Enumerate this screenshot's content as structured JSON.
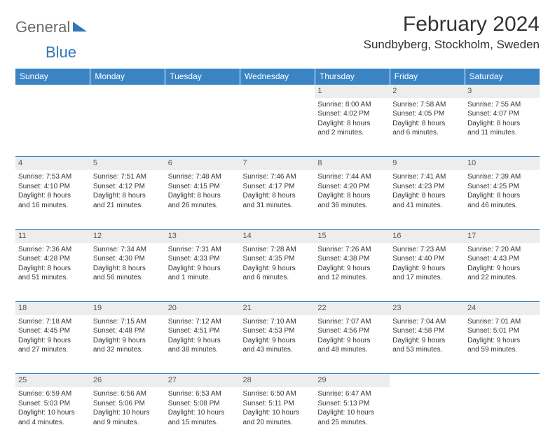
{
  "logo": {
    "text1": "General",
    "text2": "Blue",
    "shape_color": "#2f77b5"
  },
  "title": "February 2024",
  "location": "Sundbyberg, Stockholm, Sweden",
  "colors": {
    "header_bg": "#3a84c4",
    "header_text": "#ffffff",
    "daynum_bg": "#ededed",
    "border": "#3a84c4",
    "body_text": "#333333"
  },
  "day_headers": [
    "Sunday",
    "Monday",
    "Tuesday",
    "Wednesday",
    "Thursday",
    "Friday",
    "Saturday"
  ],
  "weeks": [
    [
      null,
      null,
      null,
      null,
      {
        "n": "1",
        "sr": "Sunrise: 8:00 AM",
        "ss": "Sunset: 4:02 PM",
        "d1": "Daylight: 8 hours",
        "d2": "and 2 minutes."
      },
      {
        "n": "2",
        "sr": "Sunrise: 7:58 AM",
        "ss": "Sunset: 4:05 PM",
        "d1": "Daylight: 8 hours",
        "d2": "and 6 minutes."
      },
      {
        "n": "3",
        "sr": "Sunrise: 7:55 AM",
        "ss": "Sunset: 4:07 PM",
        "d1": "Daylight: 8 hours",
        "d2": "and 11 minutes."
      }
    ],
    [
      {
        "n": "4",
        "sr": "Sunrise: 7:53 AM",
        "ss": "Sunset: 4:10 PM",
        "d1": "Daylight: 8 hours",
        "d2": "and 16 minutes."
      },
      {
        "n": "5",
        "sr": "Sunrise: 7:51 AM",
        "ss": "Sunset: 4:12 PM",
        "d1": "Daylight: 8 hours",
        "d2": "and 21 minutes."
      },
      {
        "n": "6",
        "sr": "Sunrise: 7:48 AM",
        "ss": "Sunset: 4:15 PM",
        "d1": "Daylight: 8 hours",
        "d2": "and 26 minutes."
      },
      {
        "n": "7",
        "sr": "Sunrise: 7:46 AM",
        "ss": "Sunset: 4:17 PM",
        "d1": "Daylight: 8 hours",
        "d2": "and 31 minutes."
      },
      {
        "n": "8",
        "sr": "Sunrise: 7:44 AM",
        "ss": "Sunset: 4:20 PM",
        "d1": "Daylight: 8 hours",
        "d2": "and 36 minutes."
      },
      {
        "n": "9",
        "sr": "Sunrise: 7:41 AM",
        "ss": "Sunset: 4:23 PM",
        "d1": "Daylight: 8 hours",
        "d2": "and 41 minutes."
      },
      {
        "n": "10",
        "sr": "Sunrise: 7:39 AM",
        "ss": "Sunset: 4:25 PM",
        "d1": "Daylight: 8 hours",
        "d2": "and 46 minutes."
      }
    ],
    [
      {
        "n": "11",
        "sr": "Sunrise: 7:36 AM",
        "ss": "Sunset: 4:28 PM",
        "d1": "Daylight: 8 hours",
        "d2": "and 51 minutes."
      },
      {
        "n": "12",
        "sr": "Sunrise: 7:34 AM",
        "ss": "Sunset: 4:30 PM",
        "d1": "Daylight: 8 hours",
        "d2": "and 56 minutes."
      },
      {
        "n": "13",
        "sr": "Sunrise: 7:31 AM",
        "ss": "Sunset: 4:33 PM",
        "d1": "Daylight: 9 hours",
        "d2": "and 1 minute."
      },
      {
        "n": "14",
        "sr": "Sunrise: 7:28 AM",
        "ss": "Sunset: 4:35 PM",
        "d1": "Daylight: 9 hours",
        "d2": "and 6 minutes."
      },
      {
        "n": "15",
        "sr": "Sunrise: 7:26 AM",
        "ss": "Sunset: 4:38 PM",
        "d1": "Daylight: 9 hours",
        "d2": "and 12 minutes."
      },
      {
        "n": "16",
        "sr": "Sunrise: 7:23 AM",
        "ss": "Sunset: 4:40 PM",
        "d1": "Daylight: 9 hours",
        "d2": "and 17 minutes."
      },
      {
        "n": "17",
        "sr": "Sunrise: 7:20 AM",
        "ss": "Sunset: 4:43 PM",
        "d1": "Daylight: 9 hours",
        "d2": "and 22 minutes."
      }
    ],
    [
      {
        "n": "18",
        "sr": "Sunrise: 7:18 AM",
        "ss": "Sunset: 4:45 PM",
        "d1": "Daylight: 9 hours",
        "d2": "and 27 minutes."
      },
      {
        "n": "19",
        "sr": "Sunrise: 7:15 AM",
        "ss": "Sunset: 4:48 PM",
        "d1": "Daylight: 9 hours",
        "d2": "and 32 minutes."
      },
      {
        "n": "20",
        "sr": "Sunrise: 7:12 AM",
        "ss": "Sunset: 4:51 PM",
        "d1": "Daylight: 9 hours",
        "d2": "and 38 minutes."
      },
      {
        "n": "21",
        "sr": "Sunrise: 7:10 AM",
        "ss": "Sunset: 4:53 PM",
        "d1": "Daylight: 9 hours",
        "d2": "and 43 minutes."
      },
      {
        "n": "22",
        "sr": "Sunrise: 7:07 AM",
        "ss": "Sunset: 4:56 PM",
        "d1": "Daylight: 9 hours",
        "d2": "and 48 minutes."
      },
      {
        "n": "23",
        "sr": "Sunrise: 7:04 AM",
        "ss": "Sunset: 4:58 PM",
        "d1": "Daylight: 9 hours",
        "d2": "and 53 minutes."
      },
      {
        "n": "24",
        "sr": "Sunrise: 7:01 AM",
        "ss": "Sunset: 5:01 PM",
        "d1": "Daylight: 9 hours",
        "d2": "and 59 minutes."
      }
    ],
    [
      {
        "n": "25",
        "sr": "Sunrise: 6:59 AM",
        "ss": "Sunset: 5:03 PM",
        "d1": "Daylight: 10 hours",
        "d2": "and 4 minutes."
      },
      {
        "n": "26",
        "sr": "Sunrise: 6:56 AM",
        "ss": "Sunset: 5:06 PM",
        "d1": "Daylight: 10 hours",
        "d2": "and 9 minutes."
      },
      {
        "n": "27",
        "sr": "Sunrise: 6:53 AM",
        "ss": "Sunset: 5:08 PM",
        "d1": "Daylight: 10 hours",
        "d2": "and 15 minutes."
      },
      {
        "n": "28",
        "sr": "Sunrise: 6:50 AM",
        "ss": "Sunset: 5:11 PM",
        "d1": "Daylight: 10 hours",
        "d2": "and 20 minutes."
      },
      {
        "n": "29",
        "sr": "Sunrise: 6:47 AM",
        "ss": "Sunset: 5:13 PM",
        "d1": "Daylight: 10 hours",
        "d2": "and 25 minutes."
      },
      null,
      null
    ]
  ]
}
